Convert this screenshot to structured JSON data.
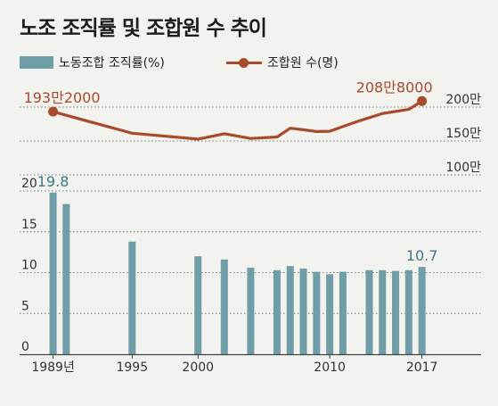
{
  "title": "노조 조직률 및 조합원 수 추이",
  "colors": {
    "bar": "#6f9ea7",
    "line": "#a84a2c",
    "bar_label": "#3c7b84",
    "line_label": "#a84a2c",
    "grid": "#777777",
    "axis": "#444444"
  },
  "chart_data": {
    "type": "bar+line",
    "grid": true,
    "legend_position": "top-left",
    "legend": [
      {
        "name": "노동조합 조직률(%)",
        "type": "bar"
      },
      {
        "name": "조합원 수(명)",
        "type": "line"
      }
    ],
    "x_axis": {
      "range": [
        1987,
        2020
      ],
      "tick_values": [
        1989,
        1995,
        2000,
        2010,
        2017
      ],
      "tick_labels": [
        "1989년",
        "1995",
        "2000",
        "2010",
        "2017"
      ]
    },
    "bar_axis": {
      "range": [
        0,
        20
      ],
      "ticks": [
        0,
        5,
        10,
        15,
        20
      ],
      "tick_labels": [
        "0",
        "5",
        "10",
        "15",
        "20"
      ]
    },
    "line_axis": {
      "range": [
        1000000,
        2000000
      ],
      "ticks": [
        1000000,
        1500000,
        2000000
      ],
      "tick_labels": [
        "100만",
        "150만",
        "200만"
      ]
    },
    "bars": [
      {
        "x": 1989,
        "value": 19.8
      },
      {
        "x": 1990,
        "value": 18.4
      },
      {
        "x": 1995,
        "value": 13.8
      },
      {
        "x": 2000,
        "value": 12.0
      },
      {
        "x": 2002,
        "value": 11.6
      },
      {
        "x": 2004,
        "value": 10.6
      },
      {
        "x": 2006,
        "value": 10.3
      },
      {
        "x": 2007,
        "value": 10.8
      },
      {
        "x": 2008,
        "value": 10.5
      },
      {
        "x": 2009,
        "value": 10.1
      },
      {
        "x": 2010,
        "value": 9.8
      },
      {
        "x": 2011,
        "value": 10.1
      },
      {
        "x": 2013,
        "value": 10.3
      },
      {
        "x": 2014,
        "value": 10.3
      },
      {
        "x": 2015,
        "value": 10.2
      },
      {
        "x": 2016,
        "value": 10.3
      },
      {
        "x": 2017,
        "value": 10.7
      }
    ],
    "line": [
      {
        "x": 1989,
        "value": 1932000
      },
      {
        "x": 1995,
        "value": 1615000
      },
      {
        "x": 2000,
        "value": 1527000
      },
      {
        "x": 2002,
        "value": 1606000
      },
      {
        "x": 2004,
        "value": 1537000
      },
      {
        "x": 2006,
        "value": 1559000
      },
      {
        "x": 2007,
        "value": 1688000
      },
      {
        "x": 2008,
        "value": 1666000
      },
      {
        "x": 2009,
        "value": 1640000
      },
      {
        "x": 2010,
        "value": 1643000
      },
      {
        "x": 2012,
        "value": 1781000
      },
      {
        "x": 2014,
        "value": 1905000
      },
      {
        "x": 2016,
        "value": 1966000
      },
      {
        "x": 2017,
        "value": 2088000
      }
    ],
    "annotations": [
      {
        "text": "19.8",
        "series": "bar",
        "x": 1989,
        "value": 19.8
      },
      {
        "text": "10.7",
        "series": "bar",
        "x": 2017,
        "value": 10.7
      },
      {
        "text": "193만2000",
        "series": "line",
        "x": 1989,
        "value": 1932000
      },
      {
        "text": "208만8000",
        "series": "line",
        "x": 2017,
        "value": 2088000
      }
    ]
  }
}
